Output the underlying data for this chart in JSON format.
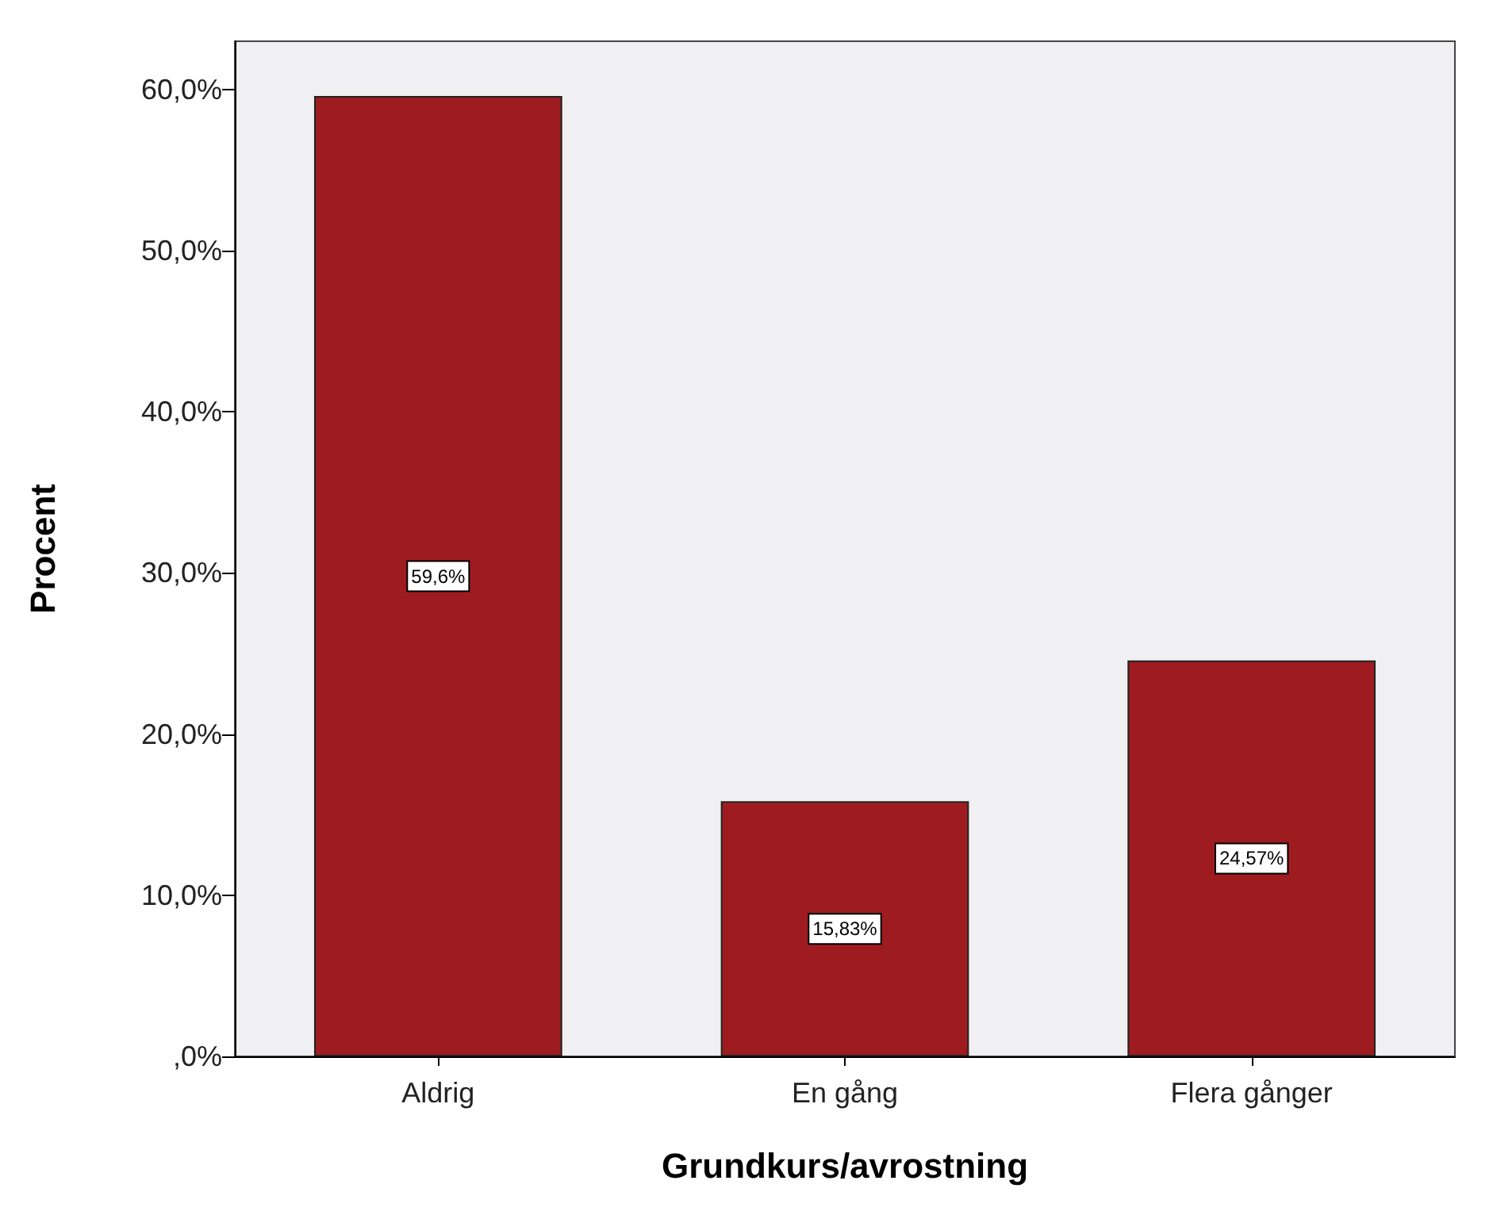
{
  "chart_data": {
    "type": "bar",
    "xlabel": "Grundkurs/avrostning",
    "ylabel": "Procent",
    "categories": [
      "Aldrig",
      "En gång",
      "Flera gånger"
    ],
    "values": [
      59.6,
      15.83,
      24.57
    ],
    "color": "#9e1c20",
    "value_labels": [
      "59,6%",
      "15,83%",
      "24,57%"
    ],
    "ylim": [
      0,
      63
    ],
    "yticks": [
      {
        "value": 0,
        "label": ",0%"
      },
      {
        "value": 10,
        "label": "10,0%"
      },
      {
        "value": 20,
        "label": "20,0%"
      },
      {
        "value": 30,
        "label": "30,0%"
      },
      {
        "value": 40,
        "label": "40,0%"
      },
      {
        "value": 50,
        "label": "50,0%"
      },
      {
        "value": 60,
        "label": "60,0%"
      }
    ]
  }
}
